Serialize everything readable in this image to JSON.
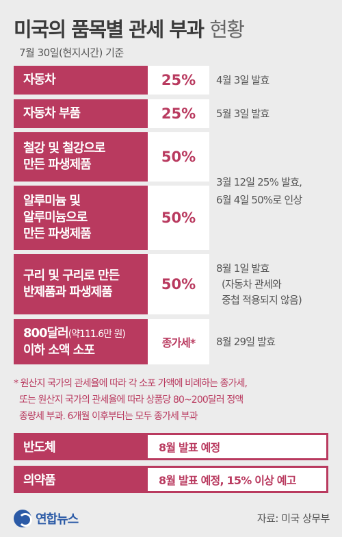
{
  "title": {
    "bold": "미국의 품목별 관세 부과",
    "light": "현황"
  },
  "subtitle": "7월 30일(현지시간) 기준",
  "rows": [
    {
      "category": "자동차",
      "rate": "25%",
      "note": "4월 3일 발효"
    },
    {
      "category": "자동차 부품",
      "rate": "25%",
      "note": "5월 3일 발효"
    },
    {
      "category_lines": [
        "철강 및 철강으로",
        "만든 파생제품"
      ],
      "rate": "50%"
    },
    {
      "category_lines": [
        "알루미늄 및",
        "알루미늄으로",
        "만든 파생제품"
      ],
      "rate": "50%"
    },
    {
      "category_lines": [
        "구리 및 구리로 만든",
        "반제품과 파생제품"
      ],
      "rate": "50%",
      "note_lines": [
        "8월 1일 발효",
        "(자동차 관세와",
        "중첩 적용되지 않음)"
      ]
    },
    {
      "category_main": "800달러",
      "category_paren": "(약111.6만 원)",
      "category_line2": "이하 소액 소포",
      "rate": "종가세*",
      "note": "8월 29일 발효"
    }
  ],
  "shared_note_lines": [
    "3월 12일 25% 발효,",
    "6월 4일 50%로 인상"
  ],
  "footnote_lines": [
    "* 원산지 국가의 관세율에 따라 각 소포 가액에 비례하는 종가세,",
    "또는 원산지 국가의 관세율에 따라 상품당 80~200달러 정액",
    "종량세 부과. 6개월 이후부터는 모두 종가세 부과"
  ],
  "pending": [
    {
      "category": "반도체",
      "status": "8월 발표 예정"
    },
    {
      "category": "의약품",
      "status": "8월 발표 예정, 15% 이상 예고"
    }
  ],
  "logo_text": "연합뉴스",
  "source": "자료: 미국 상무부",
  "colors": {
    "accent": "#b93a5f",
    "background": "#ececec",
    "logo": "#2b5aa6"
  }
}
